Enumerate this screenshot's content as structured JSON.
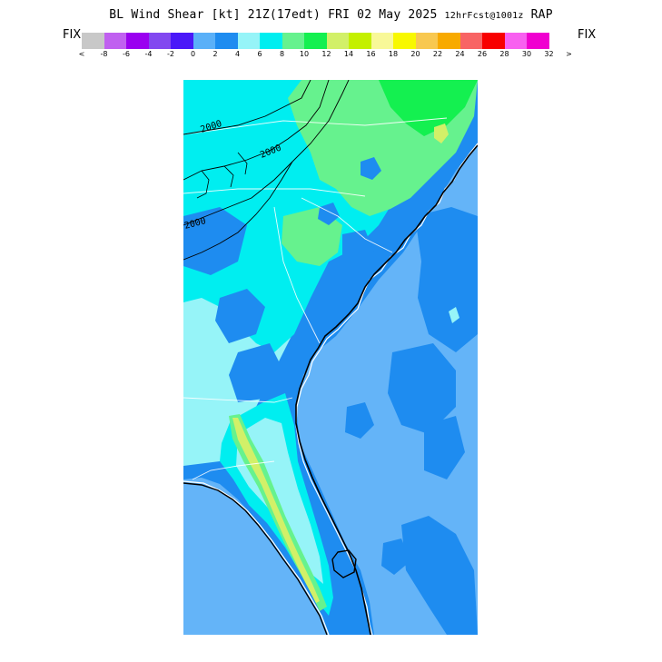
{
  "title": {
    "product": "BL Wind Shear",
    "units": "[kt]",
    "valid": "21Z(17edt) FRI 02 May 2025",
    "forecast": "12hrFcst@1001z",
    "model": "RAP"
  },
  "fix_left": "FIX",
  "fix_right": "FIX",
  "colorbar": {
    "colors": [
      "#c8c8c8",
      "#c060f0",
      "#9a00f0",
      "#8248f0",
      "#4a18f8",
      "#5ab0f8",
      "#1e8cf0",
      "#96f4f8",
      "#00eef0",
      "#66f28e",
      "#14f050",
      "#d2f068",
      "#c4f000",
      "#f8f898",
      "#f8f800",
      "#f8c850",
      "#f8aa00",
      "#f86464",
      "#f80000",
      "#f860f0",
      "#f000d0"
    ],
    "ticks": [
      "<",
      "-8",
      "-6",
      "-4",
      "-2",
      "0",
      "2",
      "4",
      "6",
      "8",
      "10",
      "12",
      "14",
      "16",
      "18",
      "20",
      "22",
      "24",
      "26",
      "28",
      "30",
      "32",
      ">"
    ]
  },
  "map": {
    "contour_labels": [
      "2000",
      "2000",
      "2000"
    ],
    "colors": {
      "ocean": "#64b4f8",
      "blue": "#1e8cf0",
      "cyan": "#00eef0",
      "light_cyan": "#96f4f8",
      "green": "#66f28e",
      "bright_green": "#14f050",
      "yellow_green": "#d2f068"
    }
  }
}
